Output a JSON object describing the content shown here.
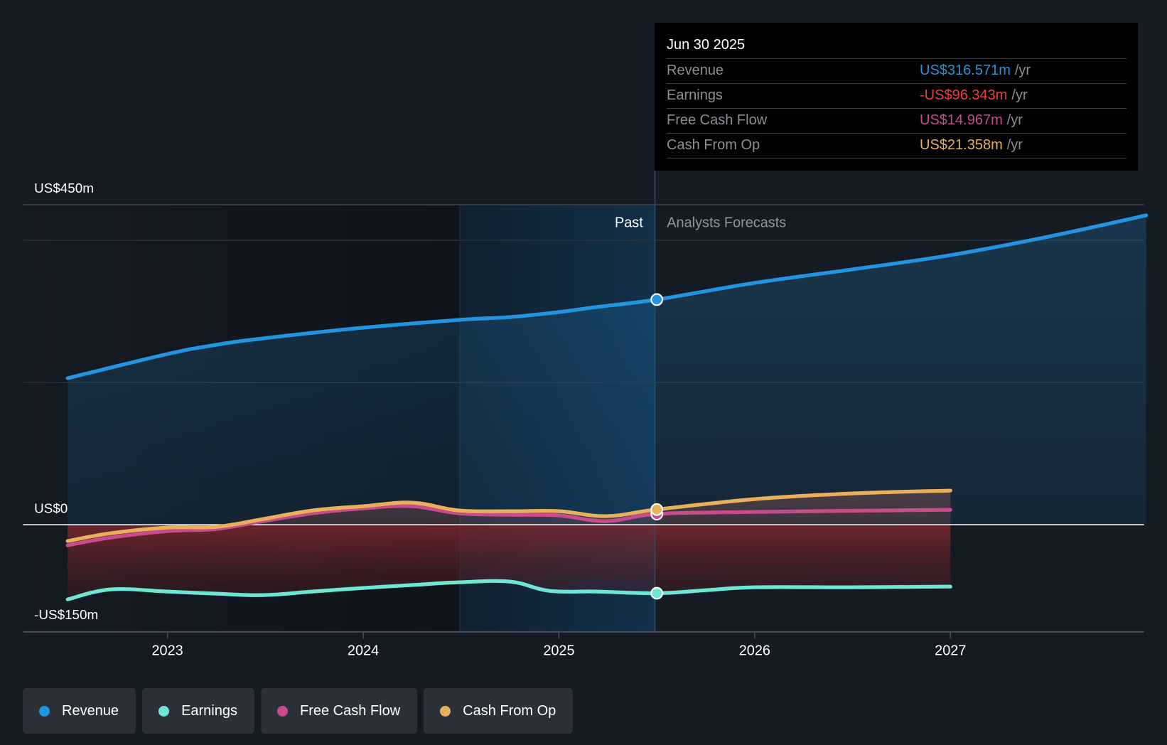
{
  "tooltip": {
    "date": "Jun 30 2025",
    "rows": [
      {
        "label": "Revenue",
        "value": "US$316.571m",
        "unit": "/yr",
        "color": "#2394df"
      },
      {
        "label": "Earnings",
        "value": "-US$96.343m",
        "unit": "/yr",
        "color": "#e8403f"
      },
      {
        "label": "Free Cash Flow",
        "value": "US$14.967m",
        "unit": "/yr",
        "color": "#c84b8c"
      },
      {
        "label": "Cash From Op",
        "value": "US$21.358m",
        "unit": "/yr",
        "color": "#e8b05a"
      }
    ]
  },
  "regions": {
    "past_label": "Past",
    "forecast_label": "Analysts Forecasts"
  },
  "legend": [
    {
      "label": "Revenue",
      "color": "#2394df"
    },
    {
      "label": "Earnings",
      "color": "#6ee6d4"
    },
    {
      "label": "Free Cash Flow",
      "color": "#c84b8c"
    },
    {
      "label": "Cash From Op",
      "color": "#e8b05a"
    }
  ],
  "chart_data": {
    "type": "area",
    "title": "",
    "xlabel": "",
    "ylabel": "",
    "ylim": [
      -150,
      450
    ],
    "xlim": [
      2022.5,
      2028.0
    ],
    "y_tick_labels": [
      {
        "value": 450,
        "label": "US$450m"
      },
      {
        "value": 0,
        "label": "US$0"
      },
      {
        "value": -150,
        "label": "-US$150m"
      }
    ],
    "gridlines": [
      450,
      400,
      200
    ],
    "x_ticks": [
      {
        "value": 2023,
        "label": "2023"
      },
      {
        "value": 2024,
        "label": "2024"
      },
      {
        "value": 2025,
        "label": "2025"
      },
      {
        "value": 2026,
        "label": "2026"
      },
      {
        "value": 2027,
        "label": "2027"
      }
    ],
    "past_band_start": 2024.5,
    "divider_x": 2025.5,
    "highlight_x": 2025.5,
    "legend_position": "bottom-left",
    "series": [
      {
        "name": "Revenue",
        "color": "#2394df",
        "x": [
          2022.49,
          2023.0,
          2023.25,
          2023.49,
          2024.0,
          2024.49,
          2024.75,
          2025.0,
          2025.19,
          2025.5,
          2026.0,
          2026.5,
          2027.0,
          2027.5,
          2028.0
        ],
        "values": [
          206,
          240,
          253,
          262,
          277,
          288,
          292,
          299,
          306,
          316.571,
          340,
          359,
          379,
          405,
          435
        ]
      },
      {
        "name": "Earnings",
        "color": "#6ee6d4",
        "x": [
          2022.49,
          2022.71,
          2023.0,
          2023.25,
          2023.49,
          2023.74,
          2024.0,
          2024.24,
          2024.49,
          2024.75,
          2024.95,
          2025.19,
          2025.5,
          2025.76,
          2026.0,
          2026.5,
          2027.0
        ],
        "values": [
          -105,
          -91,
          -94,
          -97,
          -99,
          -94,
          -89,
          -85,
          -81,
          -80,
          -93,
          -94,
          -96.343,
          -92,
          -88,
          -88,
          -87
        ]
      },
      {
        "name": "Free Cash Flow",
        "color": "#c84b8c",
        "x": [
          2022.49,
          2022.71,
          2023.0,
          2023.25,
          2023.49,
          2023.74,
          2024.0,
          2024.25,
          2024.49,
          2024.75,
          2025.0,
          2025.24,
          2025.5,
          2026.0,
          2027.0
        ],
        "values": [
          -29,
          -18,
          -9,
          -6,
          5,
          16,
          23,
          26,
          16,
          14,
          13,
          5,
          14.967,
          18,
          21
        ]
      },
      {
        "name": "Cash From Op",
        "color": "#e8b05a",
        "x": [
          2022.49,
          2022.71,
          2023.0,
          2023.25,
          2023.49,
          2023.74,
          2024.0,
          2024.25,
          2024.49,
          2024.75,
          2025.0,
          2025.24,
          2025.5,
          2026.0,
          2026.5,
          2027.0
        ],
        "values": [
          -23,
          -12,
          -4,
          -3,
          8,
          20,
          26,
          31,
          20,
          19,
          19,
          12,
          21.358,
          36,
          44,
          48
        ]
      }
    ]
  }
}
